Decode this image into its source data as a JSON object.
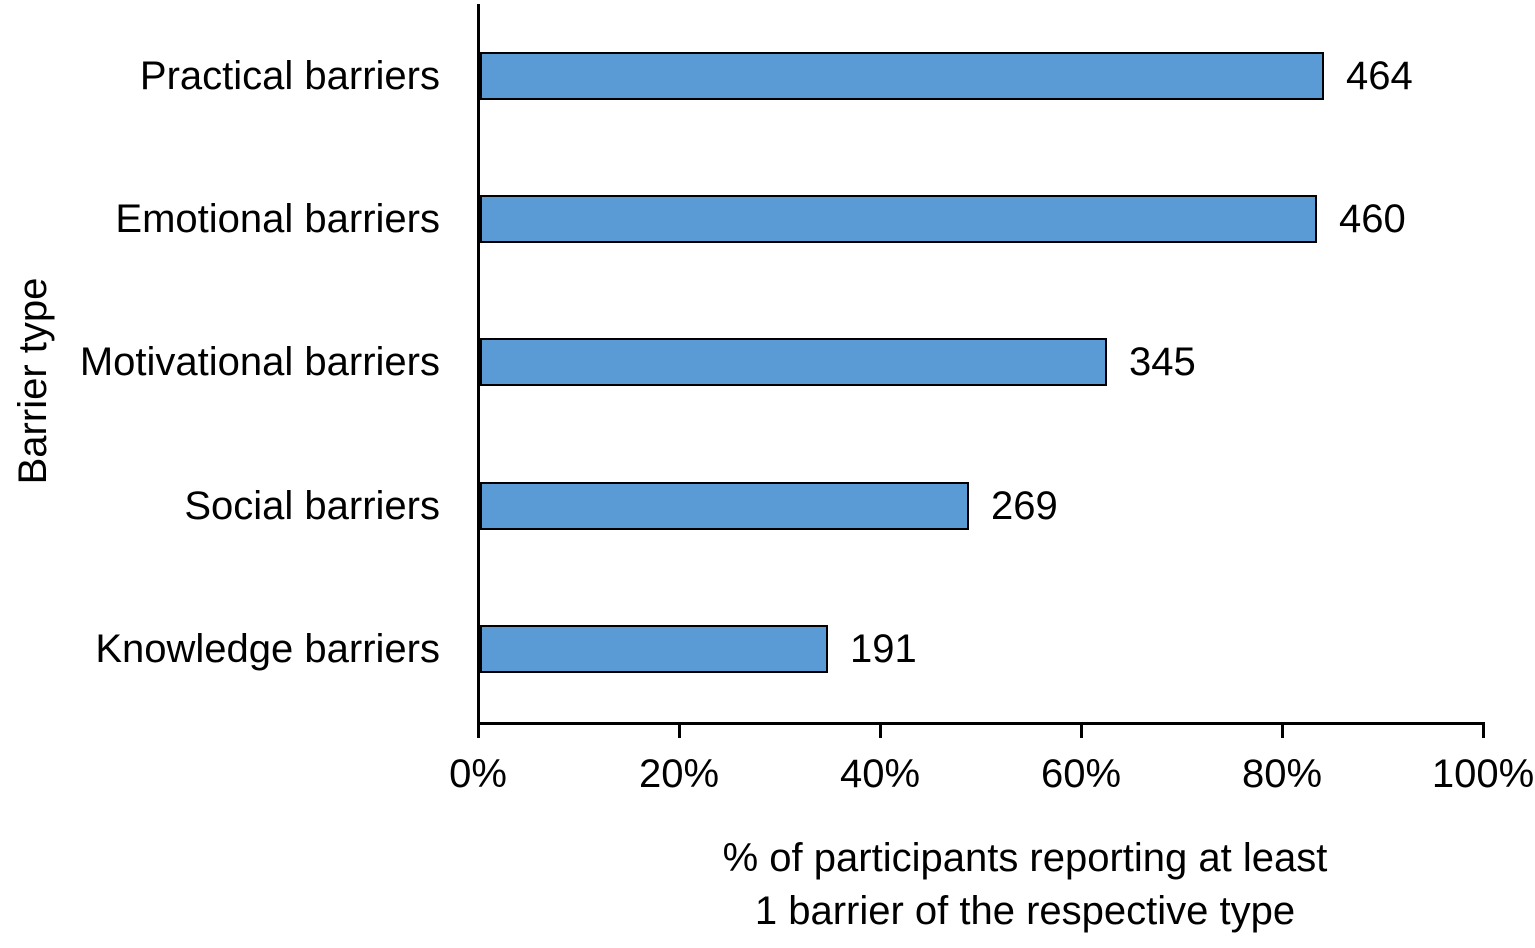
{
  "chart_data": {
    "type": "bar",
    "orientation": "horizontal",
    "categories": [
      "Practical barriers",
      "Emotional barriers",
      "Motivational barriers",
      "Social barriers",
      "Knowledge barriers"
    ],
    "values": [
      464,
      460,
      345,
      269,
      191
    ],
    "value_labels": [
      "464",
      "460",
      "345",
      "269",
      "191"
    ],
    "percents": [
      84.2,
      83.5,
      62.6,
      48.8,
      34.7
    ],
    "xlabel_lines": [
      "% of participants reporting at least",
      "1 barrier of the respective type"
    ],
    "ylabel": "Barrier type",
    "x_tick_labels": [
      "0%",
      "20%",
      "40%",
      "60%",
      "80%",
      "100%"
    ],
    "x_tick_values": [
      0,
      20,
      40,
      60,
      80,
      100
    ],
    "xlim": [
      0,
      100
    ],
    "grid": false,
    "legend": "none",
    "bar_color": "#5B9BD5",
    "bar_border_color": "#000000",
    "axis_color": "#000000",
    "text_color": "#000000",
    "background_color": "#FFFFFF"
  }
}
